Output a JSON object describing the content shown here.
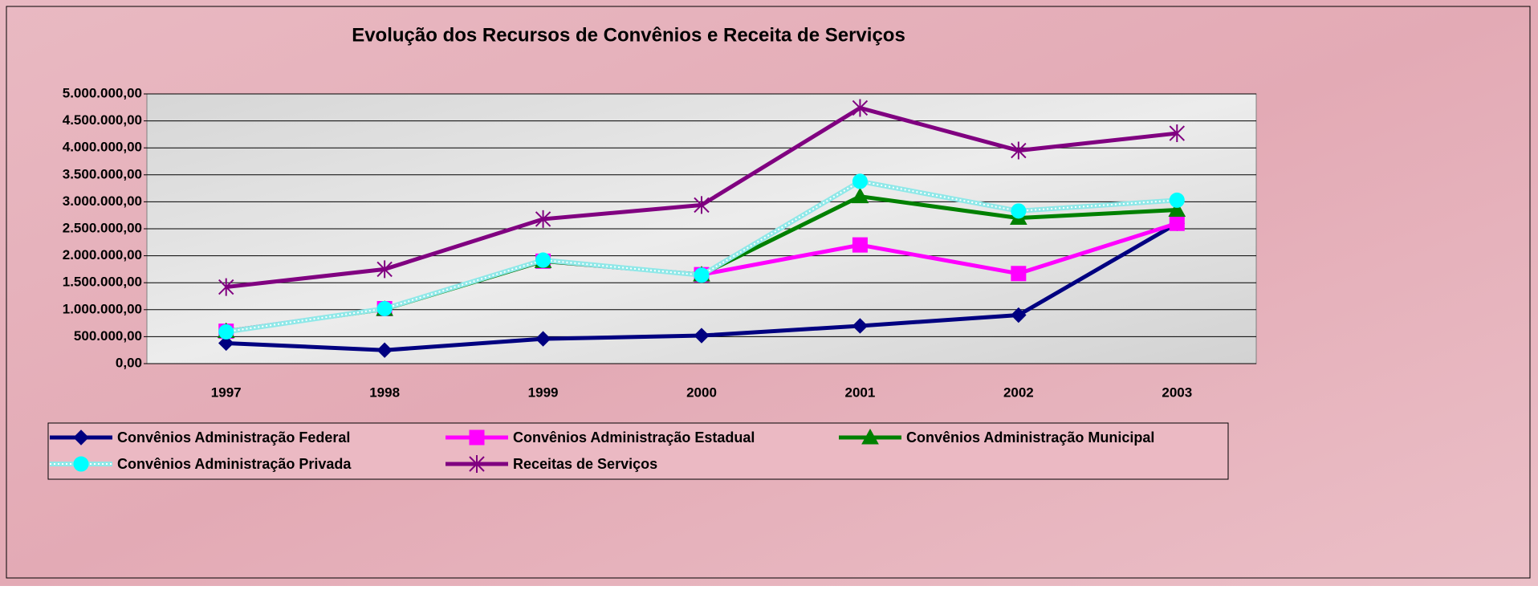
{
  "chart_data": {
    "type": "line",
    "title": "Evolução dos Recursos de Convênios e Receita de Serviços",
    "categories": [
      "1997",
      "1998",
      "1999",
      "2000",
      "2001",
      "2002",
      "2003"
    ],
    "ylim": [
      0,
      5000000
    ],
    "yticks": [
      {
        "value": 0,
        "label": "0,00"
      },
      {
        "value": 500000,
        "label": "500.000,00"
      },
      {
        "value": 1000000,
        "label": "1.000.000,00"
      },
      {
        "value": 1500000,
        "label": "1.500.000,00"
      },
      {
        "value": 2000000,
        "label": "2.000.000,00"
      },
      {
        "value": 2500000,
        "label": "2.500.000,00"
      },
      {
        "value": 3000000,
        "label": "3.000.000,00"
      },
      {
        "value": 3500000,
        "label": "3.500.000,00"
      },
      {
        "value": 4000000,
        "label": "4.000.000,00"
      },
      {
        "value": 4500000,
        "label": "4.500.000,00"
      },
      {
        "value": 5000000,
        "label": "5.000.000,00"
      }
    ],
    "grid": true,
    "legend": "bottom",
    "series": [
      {
        "name": "Convênios Administração Federal",
        "color": "#000080",
        "marker": "diamond",
        "values": [
          380000,
          250000,
          460000,
          520000,
          700000,
          900000,
          2600000
        ]
      },
      {
        "name": "Convênios Administração Estadual",
        "color": "#ff00ff",
        "marker": "square",
        "values": [
          600000,
          1020000,
          1900000,
          1650000,
          2200000,
          1670000,
          2600000
        ]
      },
      {
        "name": "Convênios Administração Municipal",
        "color": "#008000",
        "marker": "triangle",
        "values": [
          600000,
          1010000,
          1900000,
          1650000,
          3100000,
          2700000,
          2850000
        ]
      },
      {
        "name": "Convênios Administração Privada",
        "color": "#00ffff",
        "marker": "circle",
        "values": [
          590000,
          1020000,
          1920000,
          1640000,
          3380000,
          2830000,
          3030000
        ]
      },
      {
        "name": "Receitas de Serviços",
        "color": "#800080",
        "marker": "star",
        "values": [
          1420000,
          1750000,
          2680000,
          2940000,
          4740000,
          3950000,
          4270000
        ]
      }
    ]
  }
}
